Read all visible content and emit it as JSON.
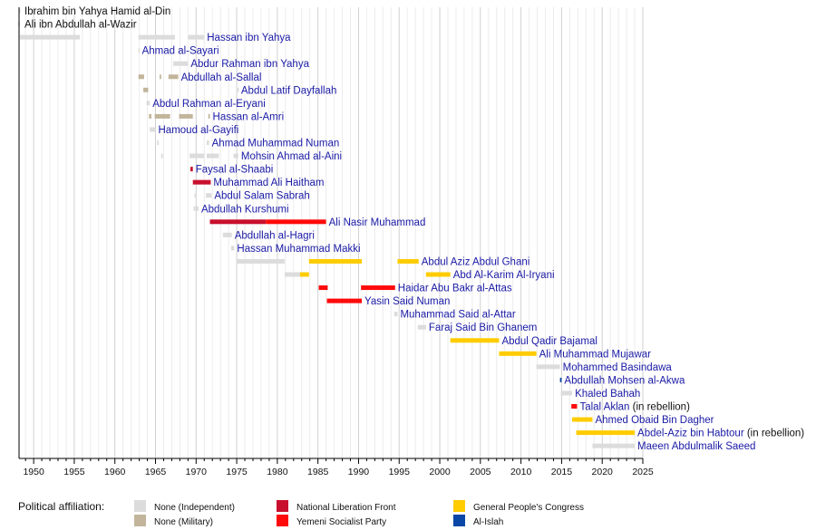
{
  "chart_data": {
    "type": "timeline",
    "title": "",
    "xlabel": "",
    "ylabel": "",
    "xlim": [
      1948.2,
      2025
    ],
    "x_ticks": [
      1950,
      1955,
      1960,
      1965,
      1970,
      1975,
      1980,
      1985,
      1990,
      1995,
      2000,
      2005,
      2010,
      2015,
      2020,
      2025
    ],
    "grid": "vertical, yearly minor and 5-year major",
    "legend_title": "Political affiliation:",
    "legend_position": "bottom",
    "affiliations": [
      {
        "key": "independent",
        "label": "None (Independent)",
        "color": "#dcdcdc"
      },
      {
        "key": "military",
        "label": "None (Military)",
        "color": "#c2b59b"
      },
      {
        "key": "nlf",
        "label": "National Liberation Front",
        "color": "#c8102e"
      },
      {
        "key": "ysp",
        "label": "Yemeni Socialist Party",
        "color": "#ff0a0a"
      },
      {
        "key": "gpc",
        "label": "General People's Congress",
        "color": "#ffcc00"
      },
      {
        "key": "islah",
        "label": "Al-Islah",
        "color": "#0a47a6"
      }
    ],
    "rows": [
      {
        "name": "Ibrahim bin Yahya Hamid al-Din",
        "note": "",
        "style": "black",
        "terms": [
          {
            "start": 1948.2,
            "end": 1948.3,
            "aff": "independent"
          }
        ]
      },
      {
        "name": "Ali ibn Abdullah al-Wazir",
        "note": "",
        "style": "black",
        "terms": [
          {
            "start": 1948.1,
            "end": 1948.3,
            "aff": "independent"
          }
        ]
      },
      {
        "name": "Hassan ibn Yahya",
        "note": "",
        "style": "blue",
        "terms": [
          {
            "start": 1948.3,
            "end": 1955.7,
            "aff": "independent"
          },
          {
            "start": 1962.9,
            "end": 1967.4,
            "aff": "independent"
          },
          {
            "start": 1969.0,
            "end": 1971.0,
            "aff": "independent"
          }
        ]
      },
      {
        "name": "Ahmad al-Sayari",
        "note": "",
        "style": "blue",
        "terms": [
          {
            "start": 1962.9,
            "end": 1963.0,
            "aff": "independent"
          }
        ]
      },
      {
        "name": "Abdur Rahman ibn Yahya",
        "note": "",
        "style": "blue",
        "terms": [
          {
            "start": 1967.2,
            "end": 1969.0,
            "aff": "independent"
          }
        ]
      },
      {
        "name": "Abdullah al-Sallal",
        "note": "",
        "style": "blue",
        "terms": [
          {
            "start": 1962.9,
            "end": 1963.6,
            "aff": "military"
          },
          {
            "start": 1965.5,
            "end": 1965.7,
            "aff": "military"
          },
          {
            "start": 1966.6,
            "end": 1967.8,
            "aff": "military"
          }
        ]
      },
      {
        "name": "Abdul Latif Dayfallah",
        "note": "",
        "style": "blue",
        "terms": [
          {
            "start": 1963.5,
            "end": 1964.1,
            "aff": "military"
          },
          {
            "start": 1975.1,
            "end": 1975.2,
            "aff": "independent"
          }
        ]
      },
      {
        "name": "Abdul Rahman al-Eryani",
        "note": "",
        "style": "blue",
        "terms": [
          {
            "start": 1963.9,
            "end": 1964.3,
            "aff": "independent"
          }
        ]
      },
      {
        "name": "Hassan al-Amri",
        "note": "",
        "style": "blue",
        "terms": [
          {
            "start": 1964.2,
            "end": 1964.5,
            "aff": "military"
          },
          {
            "start": 1964.9,
            "end": 1966.8,
            "aff": "military"
          },
          {
            "start": 1967.9,
            "end": 1969.6,
            "aff": "military"
          },
          {
            "start": 1971.5,
            "end": 1971.7,
            "aff": "military"
          }
        ]
      },
      {
        "name": "Hamoud al-Gayifi",
        "note": "",
        "style": "blue",
        "terms": [
          {
            "start": 1964.3,
            "end": 1965.0,
            "aff": "independent"
          }
        ]
      },
      {
        "name": "Ahmad Muhammad Numan",
        "note": "",
        "style": "blue",
        "terms": [
          {
            "start": 1965.2,
            "end": 1965.4,
            "aff": "independent"
          },
          {
            "start": 1971.3,
            "end": 1971.6,
            "aff": "independent"
          }
        ]
      },
      {
        "name": "Mohsin Ahmad al-Aini",
        "note": "",
        "style": "blue",
        "terms": [
          {
            "start": 1965.7,
            "end": 1965.9,
            "aff": "independent"
          },
          {
            "start": 1969.2,
            "end": 1971.0,
            "aff": "independent"
          },
          {
            "start": 1971.3,
            "end": 1972.8,
            "aff": "independent"
          },
          {
            "start": 1974.6,
            "end": 1975.2,
            "aff": "independent"
          }
        ]
      },
      {
        "name": "Faysal al-Shaabi",
        "note": "",
        "style": "blue",
        "terms": [
          {
            "start": 1969.3,
            "end": 1969.6,
            "aff": "nlf"
          }
        ]
      },
      {
        "name": "Muhammad Ali Haitham",
        "note": "",
        "style": "blue",
        "terms": [
          {
            "start": 1969.6,
            "end": 1971.8,
            "aff": "nlf"
          }
        ]
      },
      {
        "name": "Abdul Salam Sabrah",
        "note": "",
        "style": "blue",
        "terms": [
          {
            "start": 1969.8,
            "end": 1970.0,
            "aff": "independent"
          },
          {
            "start": 1971.2,
            "end": 1971.9,
            "aff": "independent"
          }
        ]
      },
      {
        "name": "Abdullah Kurshumi",
        "note": "",
        "style": "blue",
        "terms": [
          {
            "start": 1969.7,
            "end": 1970.3,
            "aff": "independent"
          }
        ]
      },
      {
        "name": "Ali Nasir Muhammad",
        "note": "",
        "style": "blue",
        "terms": [
          {
            "start": 1971.7,
            "end": 1978.6,
            "aff": "nlf"
          },
          {
            "start": 1978.6,
            "end": 1986.0,
            "aff": "ysp"
          }
        ]
      },
      {
        "name": "Abdullah al-Hagri",
        "note": "",
        "style": "blue",
        "terms": [
          {
            "start": 1973.3,
            "end": 1974.4,
            "aff": "independent"
          }
        ]
      },
      {
        "name": "Hassan Muhammad Makki",
        "note": "",
        "style": "blue",
        "terms": [
          {
            "start": 1974.3,
            "end": 1974.7,
            "aff": "independent"
          }
        ]
      },
      {
        "name": "Abdul Aziz Abdul Ghani",
        "note": "",
        "style": "blue",
        "terms": [
          {
            "start": 1975.0,
            "end": 1980.9,
            "aff": "independent"
          },
          {
            "start": 1983.9,
            "end": 1990.4,
            "aff": "gpc"
          },
          {
            "start": 1994.8,
            "end": 1997.4,
            "aff": "gpc"
          }
        ]
      },
      {
        "name": "Abd Al-Karim Al-Iryani",
        "note": "",
        "style": "blue",
        "terms": [
          {
            "start": 1980.9,
            "end": 1982.8,
            "aff": "independent"
          },
          {
            "start": 1982.8,
            "end": 1983.9,
            "aff": "gpc"
          },
          {
            "start": 1998.3,
            "end": 2001.3,
            "aff": "gpc"
          }
        ]
      },
      {
        "name": "Haidar Abu Bakr al-Attas",
        "note": "",
        "style": "blue",
        "terms": [
          {
            "start": 1985.1,
            "end": 1986.2,
            "aff": "ysp"
          },
          {
            "start": 1990.3,
            "end": 1994.5,
            "aff": "ysp"
          }
        ]
      },
      {
        "name": "Yasin Said Numan",
        "note": "",
        "style": "blue",
        "terms": [
          {
            "start": 1986.1,
            "end": 1990.4,
            "aff": "ysp"
          }
        ]
      },
      {
        "name": "Muhammad Said al-Attar",
        "note": "",
        "style": "blue",
        "terms": [
          {
            "start": 1994.4,
            "end": 1994.8,
            "aff": "independent"
          }
        ]
      },
      {
        "name": "Faraj Said Bin Ghanem",
        "note": "",
        "style": "blue",
        "terms": [
          {
            "start": 1997.3,
            "end": 1998.3,
            "aff": "independent"
          }
        ]
      },
      {
        "name": "Abdul Qadir Bajamal",
        "note": "",
        "style": "blue",
        "terms": [
          {
            "start": 2001.3,
            "end": 2007.3,
            "aff": "gpc"
          }
        ]
      },
      {
        "name": "Ali Muhammad Mujawar",
        "note": "",
        "style": "blue",
        "terms": [
          {
            "start": 2007.3,
            "end": 2011.9,
            "aff": "gpc"
          }
        ]
      },
      {
        "name": "Mohammed Basindawa",
        "note": "",
        "style": "blue",
        "terms": [
          {
            "start": 2011.9,
            "end": 2014.8,
            "aff": "independent"
          }
        ]
      },
      {
        "name": "Abdullah Mohsen al-Akwa",
        "note": "",
        "style": "blue",
        "terms": [
          {
            "start": 2014.8,
            "end": 2015.0,
            "aff": "islah"
          }
        ]
      },
      {
        "name": "Khaled Bahah",
        "note": "",
        "style": "blue",
        "terms": [
          {
            "start": 2014.9,
            "end": 2016.3,
            "aff": "independent"
          }
        ]
      },
      {
        "name": "Talal Aklan",
        "note": "(in rebellion)",
        "style": "blue",
        "terms": [
          {
            "start": 2016.2,
            "end": 2016.9,
            "aff": "ysp"
          }
        ]
      },
      {
        "name": "Ahmed Obaid Bin Dagher",
        "note": "",
        "style": "blue",
        "terms": [
          {
            "start": 2016.3,
            "end": 2018.8,
            "aff": "gpc"
          }
        ]
      },
      {
        "name": "Abdel-Aziz bin Habtour",
        "note": "(in rebellion)",
        "style": "blue",
        "terms": [
          {
            "start": 2016.8,
            "end": 2024.0,
            "aff": "gpc"
          }
        ]
      },
      {
        "name": "Maeen Abdulmalik Saeed",
        "note": "",
        "style": "blue",
        "terms": [
          {
            "start": 2018.8,
            "end": 2024.0,
            "aff": "independent"
          }
        ]
      }
    ]
  }
}
